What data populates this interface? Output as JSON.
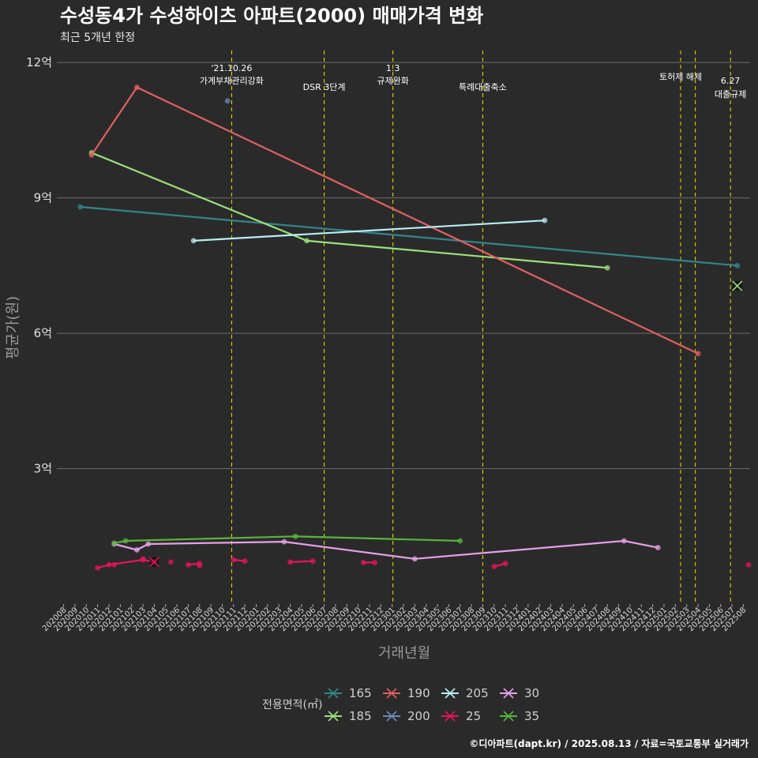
{
  "title": "수성동4가 수성하이츠 아파트(2000) 매매가격 변화",
  "subtitle": "최근 5개년 한정",
  "caption": "©디아파트(dapt.kr) / 2025.08.13 / 자료=국토교통부 실거래가",
  "chart_data": {
    "type": "line",
    "xlabel": "거래년월",
    "ylabel": "평균가(원)",
    "y_unit": "억",
    "ylim": [
      0,
      12.3
    ],
    "yticks": [
      3,
      6,
      9,
      12
    ],
    "ytick_labels": [
      "3억",
      "6억",
      "9억",
      "12억"
    ],
    "xlim": [
      "2020-08",
      "2025-08"
    ],
    "x_ticks": [
      "202008",
      "202009",
      "202010",
      "202011",
      "202012",
      "202101",
      "202102",
      "202103",
      "202104",
      "202105",
      "202106",
      "202107",
      "202108",
      "202109",
      "202110",
      "202111",
      "202112",
      "202201",
      "202202",
      "202203",
      "202204",
      "202205",
      "202206",
      "202207",
      "202208",
      "202209",
      "202210",
      "202211",
      "202212",
      "202301",
      "202302",
      "202303",
      "202304",
      "202305",
      "202306",
      "202307",
      "202308",
      "202309",
      "202310",
      "202311",
      "202312",
      "202401",
      "202402",
      "202403",
      "202404",
      "202405",
      "202406",
      "202407",
      "202408",
      "202409",
      "202410",
      "202411",
      "202412",
      "202501",
      "202502",
      "202503",
      "202504",
      "202505",
      "202506",
      "202507",
      "202508"
    ],
    "grid": true,
    "legend_title": "전용면적(㎡)",
    "legend_position": "bottom",
    "events": [
      {
        "date": "2021-10-26",
        "label": "'21.10.26\n가계부채관리강화"
      },
      {
        "date": "2022-07-01",
        "label": "DSR 3단계"
      },
      {
        "date": "2023-01-03",
        "label": "1.3\n규제완화"
      },
      {
        "date": "2023-09-01",
        "label": "특례대출축소"
      },
      {
        "date": "2025-02-15",
        "label": "토허제 해제"
      },
      {
        "date": "2025-03-24",
        "label": ""
      },
      {
        "date": "2025-06-27",
        "label": "6.27\n대출규제"
      }
    ],
    "series": [
      {
        "name": "165",
        "color": "#31868a",
        "points": [
          [
            "2020-09-15",
            8.8
          ],
          [
            "2025-07-15",
            7.5
          ]
        ]
      },
      {
        "name": "185",
        "color": "#9be07a",
        "points": [
          [
            "2020-10-15",
            10.0
          ],
          [
            "2022-05-15",
            8.05
          ],
          [
            "2024-08-01",
            7.45
          ]
        ],
        "cross": [
          "2025-07-15",
          7.05
        ]
      },
      {
        "name": "190",
        "color": "#e06060",
        "points": [
          [
            "2020-10-15",
            9.95
          ],
          [
            "2021-02-15",
            11.45
          ],
          [
            "2025-04-01",
            5.55
          ]
        ]
      },
      {
        "name": "200",
        "color": "#6b89b3",
        "points": [
          [
            "2021-10-15",
            11.15
          ]
        ]
      },
      {
        "name": "205",
        "color": "#b8eef2",
        "points": [
          [
            "2021-07-15",
            8.05
          ],
          [
            "2024-02-15",
            8.5
          ]
        ]
      },
      {
        "name": "25",
        "color": "#e8145a",
        "segments": [
          [
            [
              "2020-11-01",
              0.8
            ],
            [
              "2020-12-01",
              0.87
            ],
            [
              "2021-03-01",
              0.98
            ],
            [
              "2021-04-01",
              0.93
            ]
          ],
          [
            [
              "2021-07-01",
              0.87
            ],
            [
              "2021-08-01",
              0.9
            ]
          ],
          [
            [
              "2021-11-01",
              0.98
            ],
            [
              "2021-12-01",
              0.95
            ]
          ],
          [
            [
              "2022-04-01",
              0.93
            ],
            [
              "2022-06-01",
              0.95
            ]
          ],
          [
            [
              "2022-10-15",
              0.92
            ],
            [
              "2022-11-15",
              0.92
            ]
          ],
          [
            [
              "2023-10-01",
              0.83
            ],
            [
              "2023-11-01",
              0.9
            ]
          ]
        ],
        "singles": [
          [
            "2020-12-15",
            0.87
          ],
          [
            "2021-03-01",
            1.0
          ],
          [
            "2021-05-15",
            0.93
          ],
          [
            "2021-08-01",
            0.85
          ],
          [
            "2025-08-15",
            0.87
          ]
        ],
        "cross": [
          "2021-04-01",
          0.93
        ]
      },
      {
        "name": "30",
        "color": "#e6a0e6",
        "points": [
          [
            "2020-12-15",
            1.33
          ],
          [
            "2021-02-15",
            1.2
          ],
          [
            "2021-03-15",
            1.33
          ],
          [
            "2022-03-15",
            1.38
          ],
          [
            "2023-03-01",
            1.0
          ],
          [
            "2024-09-15",
            1.4
          ],
          [
            "2024-12-15",
            1.25
          ]
        ]
      },
      {
        "name": "35",
        "color": "#57b53d",
        "points": [
          [
            "2020-12-15",
            1.35
          ],
          [
            "2021-01-15",
            1.4
          ],
          [
            "2022-04-15",
            1.5
          ],
          [
            "2023-07-01",
            1.4
          ]
        ]
      }
    ]
  }
}
